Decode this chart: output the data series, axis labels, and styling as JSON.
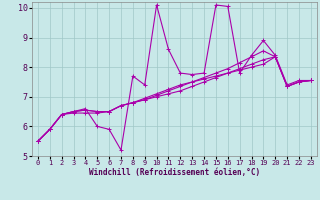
{
  "xlabel": "Windchill (Refroidissement éolien,°C)",
  "bg_color": "#c8e8e8",
  "grid_color": "#a0c8c8",
  "line_color": "#aa00aa",
  "spine_color": "#888888",
  "label_color": "#550055",
  "xlim": [
    -0.5,
    23.5
  ],
  "ylim": [
    5,
    10.2
  ],
  "xticks": [
    0,
    1,
    2,
    3,
    4,
    5,
    6,
    7,
    8,
    9,
    10,
    11,
    12,
    13,
    14,
    15,
    16,
    17,
    18,
    19,
    20,
    21,
    22,
    23
  ],
  "yticks": [
    5,
    6,
    7,
    8,
    9,
    10
  ],
  "series": [
    [
      5.5,
      5.9,
      6.4,
      6.5,
      6.6,
      6.0,
      5.9,
      5.2,
      7.7,
      7.4,
      10.1,
      8.6,
      7.8,
      7.75,
      7.8,
      10.1,
      10.05,
      7.8,
      8.4,
      8.9,
      8.4,
      7.4,
      7.55,
      7.55
    ],
    [
      5.5,
      5.9,
      6.4,
      6.45,
      6.45,
      6.45,
      6.5,
      6.7,
      6.8,
      6.95,
      7.1,
      7.25,
      7.4,
      7.5,
      7.6,
      7.7,
      7.8,
      7.9,
      8.0,
      8.1,
      8.35,
      7.35,
      7.5,
      7.55
    ],
    [
      5.5,
      5.9,
      6.4,
      6.5,
      6.55,
      6.5,
      6.5,
      6.7,
      6.8,
      6.9,
      7.0,
      7.1,
      7.2,
      7.35,
      7.5,
      7.65,
      7.8,
      7.95,
      8.1,
      8.25,
      8.35,
      7.35,
      7.5,
      7.55
    ],
    [
      5.5,
      5.9,
      6.4,
      6.5,
      6.55,
      6.5,
      6.5,
      6.7,
      6.8,
      6.9,
      7.05,
      7.2,
      7.35,
      7.5,
      7.65,
      7.8,
      7.95,
      8.15,
      8.35,
      8.55,
      8.35,
      7.35,
      7.5,
      7.55
    ]
  ],
  "marker": "+",
  "markersize": 3.5,
  "linewidth": 0.8,
  "tick_fontsize": 5,
  "xlabel_fontsize": 5.5
}
